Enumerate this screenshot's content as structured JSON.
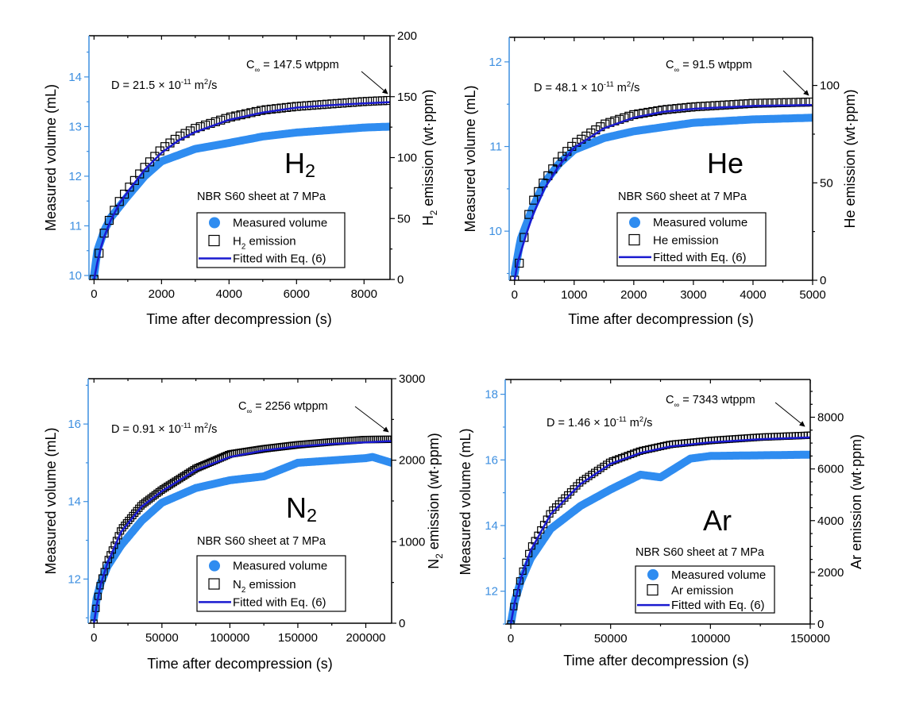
{
  "colors": {
    "measured": "#2f8cf0",
    "emission": "#000000",
    "fit": "#1a1ad0",
    "left_axis": "#3d8fe0"
  },
  "chart_data": [
    {
      "type": "scatter",
      "panel": "H2",
      "gas_label": {
        "main": "H",
        "sub": "2"
      },
      "subtitle": "NBR S60 sheet at 7 MPa",
      "d_text": {
        "prefix": "D = 21.5 × 10",
        "exp": "-11",
        "unit": " m",
        "unit_exp": "2",
        "suffix": "/s"
      },
      "c_inf": {
        "prefix": "C",
        "sub": "∞",
        "suffix": " = 147.5 wtppm"
      },
      "xlabel": "Time after decompression (s)",
      "ylabel_left": "Measured volume (mL)",
      "ylabel_right": {
        "main": "H",
        "sub": "2",
        "rest": " emission (wt·ppm)"
      },
      "xlim": [
        -150,
        8770
      ],
      "ylim_left": [
        9.92,
        14.83
      ],
      "ylim_right": [
        0,
        200
      ],
      "xticks": [
        "0",
        "2000",
        "4000",
        "6000",
        "8000"
      ],
      "yticks_left": [
        "10",
        "11",
        "12",
        "13",
        "14"
      ],
      "yticks_right": [
        "0",
        "50",
        "100",
        "150",
        "200"
      ],
      "legend": {
        "measured": "Measured volume",
        "emission": {
          "main": "H",
          "sub": "2",
          "rest": " emission"
        },
        "fit": "Fitted with Eq. (6)"
      },
      "series": [
        {
          "name": "Measured volume",
          "axis": "left",
          "x": [
            0,
            100,
            300,
            500,
            1000,
            1500,
            2000,
            3000,
            4000,
            5000,
            6000,
            7000,
            8000,
            8800
          ],
          "y": [
            10.0,
            10.5,
            10.9,
            11.17,
            11.6,
            12.0,
            12.3,
            12.55,
            12.67,
            12.8,
            12.88,
            12.93,
            12.98,
            13.0
          ]
        },
        {
          "name": "emission",
          "axis": "right",
          "x": [
            0,
            100,
            200,
            300,
            500,
            750,
            1000,
            1500,
            2000,
            2500,
            3000,
            4000,
            5000,
            6000,
            7000,
            8000,
            8800
          ],
          "y": [
            0,
            15,
            28,
            38,
            52,
            64,
            74,
            92,
            107,
            117,
            124,
            133,
            139,
            142,
            144,
            146,
            147
          ]
        },
        {
          "name": "Fitted with Eq. (6)",
          "axis": "right",
          "x": [
            0,
            100,
            200,
            300,
            500,
            750,
            1000,
            1500,
            2000,
            2500,
            3000,
            4000,
            5000,
            6000,
            7000,
            8000,
            8800
          ],
          "y": [
            0,
            14,
            26,
            35,
            49,
            62,
            72,
            90,
            104,
            114,
            121,
            131,
            137,
            141,
            143,
            144.5,
            145.5
          ]
        }
      ]
    },
    {
      "type": "scatter",
      "panel": "He",
      "gas_label": {
        "main": "He",
        "sub": ""
      },
      "subtitle": "NBR S60 sheet at 7 MPa",
      "d_text": {
        "prefix": "D = 48.1 × 10",
        "exp": "-11",
        "unit": " m",
        "unit_exp": "2",
        "suffix": "/s"
      },
      "c_inf": {
        "prefix": "C",
        "sub": "∞",
        "suffix": " = 91.5 wtppm"
      },
      "xlabel": "Time after decompression (s)",
      "ylabel_left": "Measured volume (mL)",
      "ylabel_right": {
        "main": "He",
        "sub": "",
        "rest": " emission (wt·ppm)"
      },
      "xlim": [
        -90,
        5000
      ],
      "ylim_left": [
        9.42,
        12.29
      ],
      "ylim_right": [
        0,
        124.7
      ],
      "xticks": [
        "0",
        "1000",
        "2000",
        "3000",
        "4000",
        "5000"
      ],
      "yticks_left": [
        "10",
        "11",
        "12"
      ],
      "yticks_right": [
        "0",
        "50",
        "100"
      ],
      "legend": {
        "measured": "Measured volume",
        "emission": {
          "main": "He",
          "sub": "",
          "rest": " emission"
        },
        "fit": "Fitted with Eq. (6)"
      },
      "series": [
        {
          "name": "Measured volume",
          "axis": "left",
          "x": [
            0,
            100,
            300,
            500,
            750,
            1000,
            1500,
            2000,
            3000,
            4000,
            5000
          ],
          "y": [
            9.5,
            9.9,
            10.27,
            10.57,
            10.8,
            10.96,
            11.1,
            11.18,
            11.28,
            11.32,
            11.34
          ]
        },
        {
          "name": "emission",
          "axis": "right",
          "x": [
            0,
            50,
            100,
            200,
            300,
            500,
            750,
            1000,
            1500,
            2000,
            2500,
            3000,
            4000,
            5000
          ],
          "y": [
            0,
            6,
            10.6,
            29.6,
            40,
            51,
            62,
            70,
            80,
            85,
            87.5,
            89,
            90.8,
            91.5
          ]
        },
        {
          "name": "Fitted with Eq. (6)",
          "axis": "right",
          "x": [
            0,
            50,
            100,
            200,
            300,
            500,
            750,
            1000,
            1500,
            2000,
            2500,
            3000,
            4000,
            5000
          ],
          "y": [
            0,
            9,
            14,
            24,
            33,
            47,
            59,
            68,
            78,
            83.5,
            86.5,
            88,
            89.5,
            90
          ]
        }
      ]
    },
    {
      "type": "scatter",
      "panel": "N2",
      "gas_label": {
        "main": "N",
        "sub": "2"
      },
      "subtitle": "NBR S60 sheet at 7 MPa",
      "d_text": {
        "prefix": "D = 0.91 × 10",
        "exp": "-11",
        "unit": " m",
        "unit_exp": "2",
        "suffix": "/s"
      },
      "c_inf": {
        "prefix": "C",
        "sub": "∞",
        "suffix": " = 2256 wtppm"
      },
      "xlabel": "Time after decompression (s)",
      "ylabel_left": "Measured volume (mL)",
      "ylabel_right": {
        "main": "N",
        "sub": "2",
        "rest": " emission (wt·ppm)"
      },
      "xlim": [
        -4260,
        219000
      ],
      "ylim_left": [
        10.86,
        17.17
      ],
      "ylim_right": [
        0,
        3000
      ],
      "xticks": [
        "0",
        "50000",
        "100000",
        "150000",
        "200000"
      ],
      "yticks_left": [
        "12",
        "14",
        "16"
      ],
      "yticks_right": [
        "0",
        "1000",
        "2000",
        "3000"
      ],
      "legend": {
        "measured": "Measured volume",
        "emission": {
          "main": "N",
          "sub": "2",
          "rest": " emission"
        },
        "fit": "Fitted with Eq. (6)"
      },
      "series": [
        {
          "name": "Measured volume",
          "axis": "left",
          "x": [
            0,
            2000,
            5000,
            10000,
            20000,
            35000,
            50000,
            75000,
            100000,
            125000,
            150000,
            175000,
            200000,
            205000,
            219000
          ],
          "y": [
            11.0,
            11.5,
            11.9,
            12.33,
            12.87,
            13.5,
            13.97,
            14.35,
            14.55,
            14.65,
            15.0,
            15.06,
            15.12,
            15.15,
            15.0
          ]
        },
        {
          "name": "emission",
          "axis": "right",
          "x": [
            0,
            2000,
            5000,
            10000,
            20000,
            35000,
            50000,
            75000,
            100000,
            125000,
            150000,
            175000,
            200000,
            219000
          ],
          "y": [
            0,
            243,
            503,
            762,
            1151,
            1450,
            1638,
            1900,
            2076,
            2140,
            2189,
            2225,
            2254,
            2256
          ]
        },
        {
          "name": "Fitted with Eq. (6)",
          "axis": "right",
          "x": [
            0,
            2000,
            5000,
            10000,
            20000,
            35000,
            50000,
            75000,
            100000,
            125000,
            150000,
            175000,
            200000,
            219000
          ],
          "y": [
            0,
            220,
            480,
            740,
            1120,
            1430,
            1620,
            1880,
            2040,
            2120,
            2170,
            2200,
            2220,
            2235
          ]
        }
      ]
    },
    {
      "type": "scatter",
      "panel": "Ar",
      "gas_label": {
        "main": "Ar",
        "sub": ""
      },
      "subtitle": "NBR S60 sheet at 7 MPa",
      "d_text": {
        "prefix": "D = 1.46 × 10",
        "exp": "-11",
        "unit": " m",
        "unit_exp": "2",
        "suffix": "/s"
      },
      "c_inf": {
        "prefix": "C",
        "sub": "∞",
        "suffix": " = 7343 wtppm"
      },
      "xlabel": "Time after decompression (s)",
      "ylabel_left": "Measured volume (mL)",
      "ylabel_right": {
        "main": "Ar",
        "sub": "",
        "rest": " emission (wt·ppm)"
      },
      "xlim": [
        -2800,
        150000
      ],
      "ylim_left": [
        11.0,
        18.45
      ],
      "ylim_right": [
        0,
        9460
      ],
      "xticks": [
        "0",
        "50000",
        "100000",
        "150000"
      ],
      "yticks_left": [
        "12",
        "14",
        "16",
        "18"
      ],
      "yticks_right": [
        "0",
        "2000",
        "4000",
        "6000",
        "8000"
      ],
      "legend": {
        "measured": "Measured volume",
        "emission": {
          "main": "Ar",
          "sub": "",
          "rest": " emission"
        },
        "fit": "Fitted with Eq. (6)"
      },
      "series": [
        {
          "name": "Measured volume",
          "axis": "left",
          "x": [
            0,
            2000,
            5000,
            10000,
            20000,
            35000,
            50000,
            65000,
            75000,
            90000,
            100000,
            125000,
            150000
          ],
          "y": [
            11.0,
            11.7,
            12.3,
            13.0,
            13.9,
            14.6,
            15.1,
            15.55,
            15.47,
            16.04,
            16.12,
            16.14,
            16.16
          ]
        },
        {
          "name": "emission",
          "axis": "right",
          "x": [
            0,
            2000,
            5000,
            10000,
            20000,
            35000,
            50000,
            65000,
            80000,
            100000,
            125000,
            150000
          ],
          "y": [
            0,
            900,
            1820,
            2950,
            4330,
            5500,
            6280,
            6700,
            6950,
            7100,
            7230,
            7305
          ]
        },
        {
          "name": "Fitted with Eq. (6)",
          "axis": "right",
          "x": [
            0,
            2000,
            5000,
            10000,
            20000,
            35000,
            50000,
            65000,
            80000,
            100000,
            125000,
            150000
          ],
          "y": [
            0,
            850,
            1750,
            2850,
            4250,
            5420,
            6200,
            6620,
            6870,
            7030,
            7150,
            7220
          ]
        }
      ]
    }
  ]
}
